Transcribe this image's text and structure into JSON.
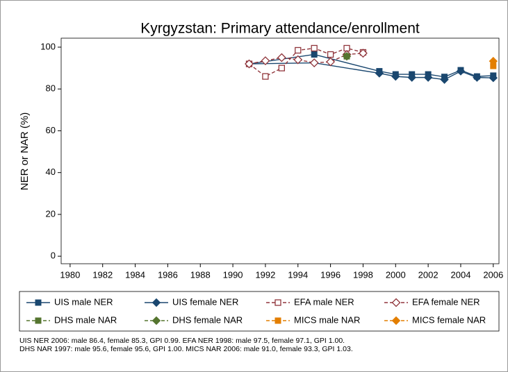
{
  "chart_data": {
    "type": "line",
    "title": "Kyrgyzstan: Primary attendance/enrollment",
    "ylabel": "NER or NAR (%)",
    "xlim": [
      1979.45,
      2006.35
    ],
    "xticks": [
      1980,
      1982,
      1984,
      1986,
      1988,
      1990,
      1992,
      1994,
      1996,
      1998,
      2000,
      2002,
      2004,
      2006
    ],
    "ylim": [
      -3.6,
      104.3
    ],
    "yticks": [
      0,
      20,
      40,
      60,
      80,
      100
    ],
    "series": [
      {
        "name": "UIS male NER",
        "color": "#1a476f",
        "marker": "square",
        "filled": true,
        "dashed": false,
        "x": [
          1991,
          1995,
          1999,
          2000,
          2001,
          2002,
          2003,
          2004,
          2005,
          2006
        ],
        "values": [
          92,
          96.5,
          88.5,
          87,
          87,
          87,
          85.8,
          89,
          86,
          86.4
        ]
      },
      {
        "name": "UIS female NER",
        "color": "#1a476f",
        "marker": "diamond",
        "filled": true,
        "dashed": false,
        "x": [
          1991,
          1995,
          1999,
          2000,
          2001,
          2002,
          2003,
          2004,
          2005,
          2006
        ],
        "values": [
          92,
          92.5,
          87.5,
          86,
          85.5,
          85.5,
          84.5,
          88.5,
          85.5,
          85.3
        ]
      },
      {
        "name": "EFA male NER",
        "color": "#90353b",
        "marker": "square",
        "filled": false,
        "dashed": true,
        "x": [
          1991,
          1992,
          1993,
          1994,
          1995,
          1996,
          1997,
          1998
        ],
        "values": [
          92,
          86,
          90,
          98.5,
          99.5,
          96.5,
          99.5,
          97.5
        ]
      },
      {
        "name": "EFA female NER",
        "color": "#90353b",
        "marker": "diamond",
        "filled": false,
        "dashed": true,
        "x": [
          1991,
          1992,
          1993,
          1994,
          1995,
          1996,
          1997,
          1998
        ],
        "values": [
          92,
          93.5,
          95,
          94,
          92.5,
          93,
          96.5,
          97.1
        ]
      },
      {
        "name": "DHS male NAR",
        "color": "#55752f",
        "marker": "square",
        "filled": true,
        "dashed": true,
        "x": [
          1997
        ],
        "values": [
          95.6
        ]
      },
      {
        "name": "DHS female NAR",
        "color": "#55752f",
        "marker": "diamond",
        "filled": true,
        "dashed": true,
        "x": [
          1997
        ],
        "values": [
          95.6
        ]
      },
      {
        "name": "MICS male NAR",
        "color": "#e37e00",
        "marker": "square",
        "filled": true,
        "dashed": true,
        "x": [
          2006
        ],
        "values": [
          91.0
        ]
      },
      {
        "name": "MICS female NAR",
        "color": "#e37e00",
        "marker": "diamond",
        "filled": true,
        "dashed": true,
        "x": [
          2006
        ],
        "values": [
          93.3
        ]
      }
    ],
    "notes": [
      "UIS NER 2006: male 86.4, female 85.3, GPI 0.99. EFA NER 1998: male 97.5, female 97.1, GPI 1.00.",
      "DHS NAR 1997: male 95.6, female 95.6, GPI 1.00. MICS NAR 2006: male 91.0, female 93.3, GPI 1.03."
    ]
  }
}
